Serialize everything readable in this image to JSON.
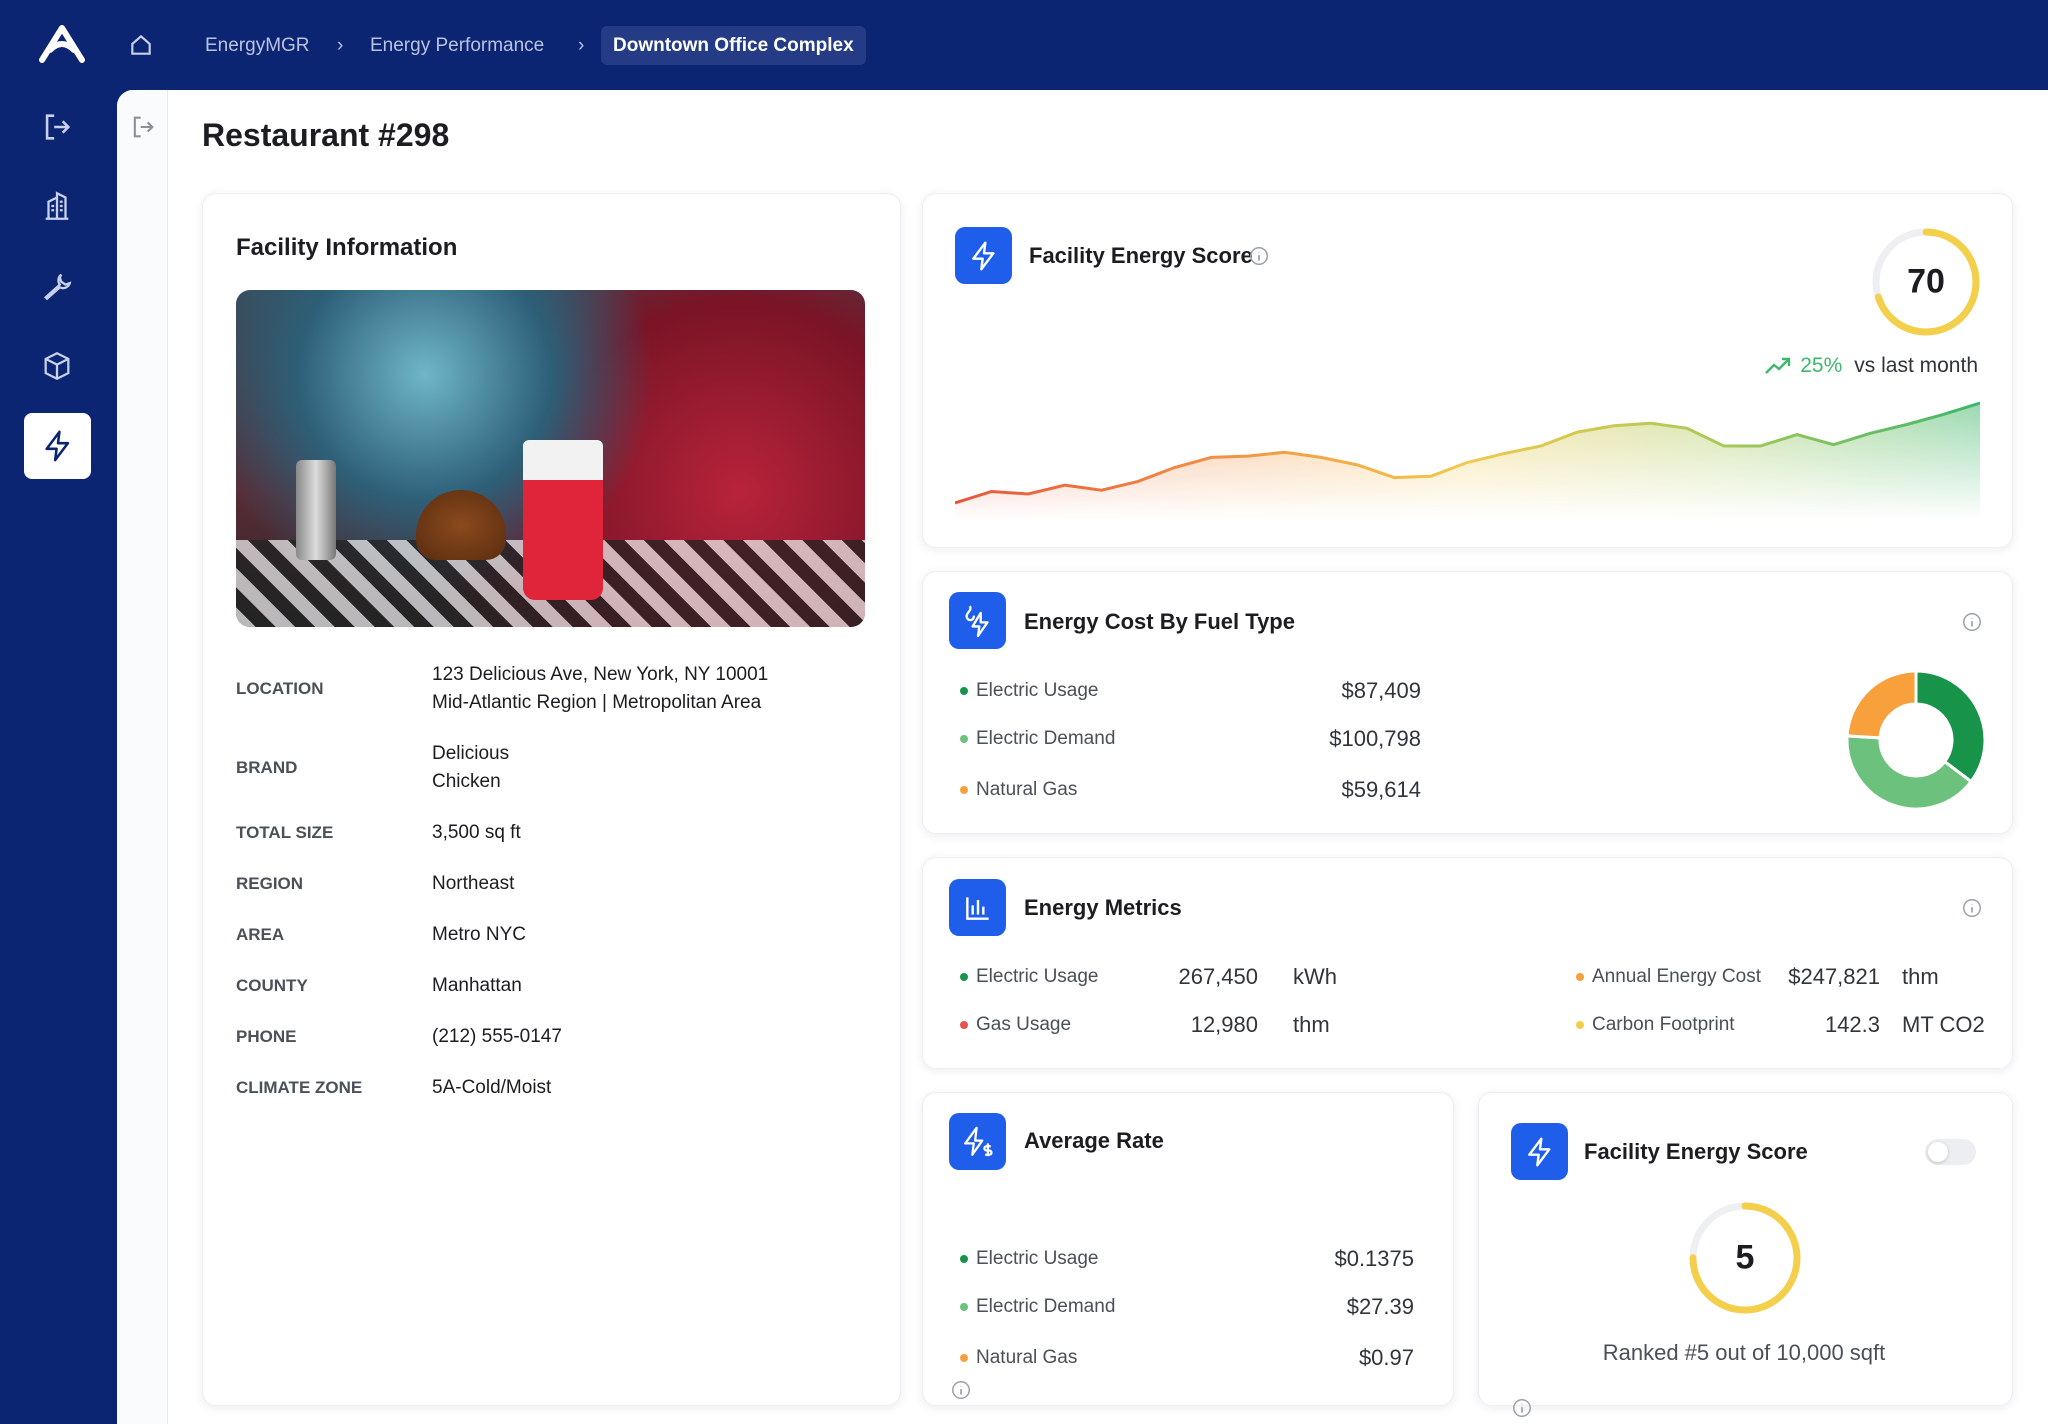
{
  "nav": {
    "breadcrumbs": [
      "EnergyMGR",
      "Energy Performance",
      "Downtown Office Complex"
    ]
  },
  "page": {
    "title": "Restaurant #298"
  },
  "facility": {
    "title": "Facility Information",
    "fields": [
      {
        "label": "LOCATION",
        "value": [
          "123 Delicious Ave, New York, NY 10001",
          "Mid-Atlantic Region | Metropolitan Area"
        ]
      },
      {
        "label": "BRAND",
        "value": [
          "Delicious",
          "Chicken"
        ]
      },
      {
        "label": "TOTAL SIZE",
        "value": [
          "3,500 sq ft"
        ]
      },
      {
        "label": "REGION",
        "value": [
          "Northeast"
        ]
      },
      {
        "label": "AREA",
        "value": [
          "Metro NYC"
        ]
      },
      {
        "label": "COUNTY",
        "value": [
          "Manhattan"
        ]
      },
      {
        "label": "PHONE",
        "value": [
          "(212) 555-0147"
        ]
      },
      {
        "label": "CLIMATE ZONE",
        "value": [
          "5A-Cold/Moist"
        ]
      }
    ]
  },
  "score_card": {
    "title": "Facility Energy Score",
    "score": "70",
    "change": "25%",
    "change_note": "vs last month",
    "trend": {
      "type": "area",
      "values": [
        8,
        17,
        15,
        22,
        18,
        25,
        36,
        44,
        45,
        48,
        44,
        38,
        28,
        29,
        40,
        47,
        53,
        64,
        69,
        71,
        67,
        53,
        53,
        62,
        54,
        63,
        70,
        78,
        87
      ]
    }
  },
  "cost_card": {
    "title": "Energy Cost By Fuel Type",
    "chart": {
      "type": "donut",
      "categories": [
        "Electric Usage",
        "Electric Demand",
        "Natural Gas"
      ],
      "values": [
        87409,
        100798,
        59614
      ],
      "value_labels": [
        "$87,409",
        "$100,798",
        "$59,614"
      ],
      "colors": [
        "#17934a",
        "#6cc27c",
        "#f7a03c"
      ]
    }
  },
  "metrics_card": {
    "title": "Energy Metrics",
    "rows": [
      {
        "label": "Electric Usage",
        "value": "267,450",
        "unit": "kWh",
        "color": "#17934a"
      },
      {
        "label": "Gas Usage",
        "value": "12,980",
        "unit": "thm",
        "color": "#e5534b"
      },
      {
        "label": "Annual Energy Cost",
        "value": "$247,821",
        "unit": "thm",
        "color": "#f7a03c"
      },
      {
        "label": "Carbon Footprint",
        "value": "142.3",
        "unit": "MT CO2",
        "color": "#f3cd4a"
      }
    ]
  },
  "rate_card": {
    "title": "Average Rate",
    "rows": [
      {
        "label": "Electric Usage",
        "value": "$0.1375",
        "color": "#17934a"
      },
      {
        "label": "Electric Demand",
        "value": "$27.39",
        "color": "#6cc27c"
      },
      {
        "label": "Natural Gas",
        "value": "$0.97",
        "color": "#f7a03c"
      }
    ]
  },
  "rank_card": {
    "title": "Facility Energy Score",
    "score": "5",
    "note": "Ranked #5 out of 10,000 sqft"
  }
}
